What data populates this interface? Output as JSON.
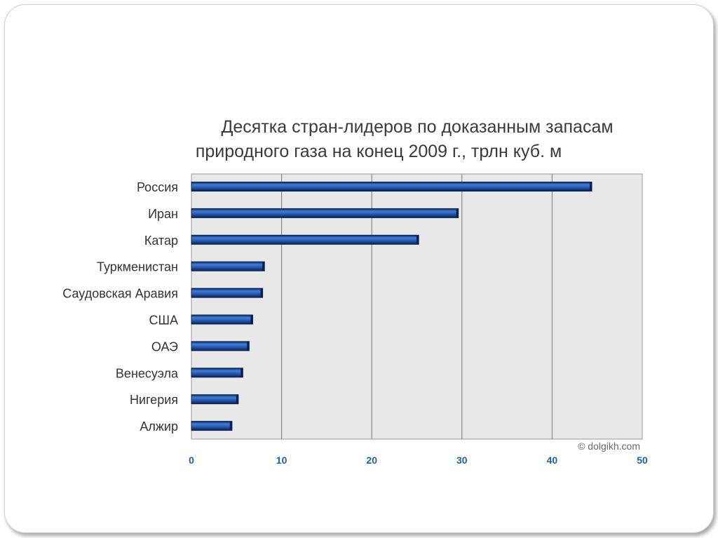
{
  "chart_data": {
    "type": "bar",
    "orientation": "horizontal",
    "title_lines": [
      "Десятка стран-лидеров по доказанным запасам",
      "природного газа на конец 2009 г., трлн куб. м"
    ],
    "categories": [
      "Россия",
      "Иран",
      "Катар",
      "Туркменистан",
      "Саудовская Аравия",
      "США",
      "ОАЭ",
      "Венесуэла",
      "Нигерия",
      "Алжир"
    ],
    "values": [
      44.4,
      29.6,
      25.2,
      8.1,
      7.9,
      6.8,
      6.4,
      5.7,
      5.2,
      4.5
    ],
    "xlim": [
      0,
      50
    ],
    "xticks": [
      "0",
      "10",
      "20",
      "30",
      "40",
      "50"
    ],
    "grid": true,
    "bar_color": "#1f4f9f",
    "tick_color": "#1f5fa8",
    "plot_background": "#e8e8e8",
    "watermark": "© dolgikh.com"
  }
}
